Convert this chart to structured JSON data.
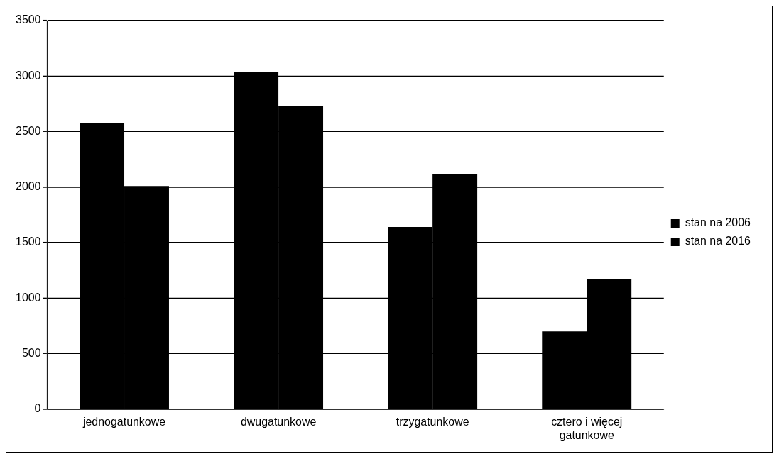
{
  "chart_data": {
    "type": "bar",
    "categories": [
      "jednogatunkowe",
      "dwugatunkowe",
      "trzygatunkowe",
      "cztero i więcej gatunkowe"
    ],
    "series": [
      {
        "name": "stan na 2006",
        "color": "#000000",
        "values": [
          2580,
          3040,
          1640,
          700
        ]
      },
      {
        "name": "stan na 2016",
        "color": "#000000",
        "values": [
          2010,
          2730,
          2120,
          1170
        ]
      }
    ],
    "ylim": [
      0,
      3500
    ],
    "yticks": [
      0,
      500,
      1000,
      1500,
      2000,
      2500,
      3000,
      3500
    ],
    "grid": "y",
    "legend": "right"
  }
}
